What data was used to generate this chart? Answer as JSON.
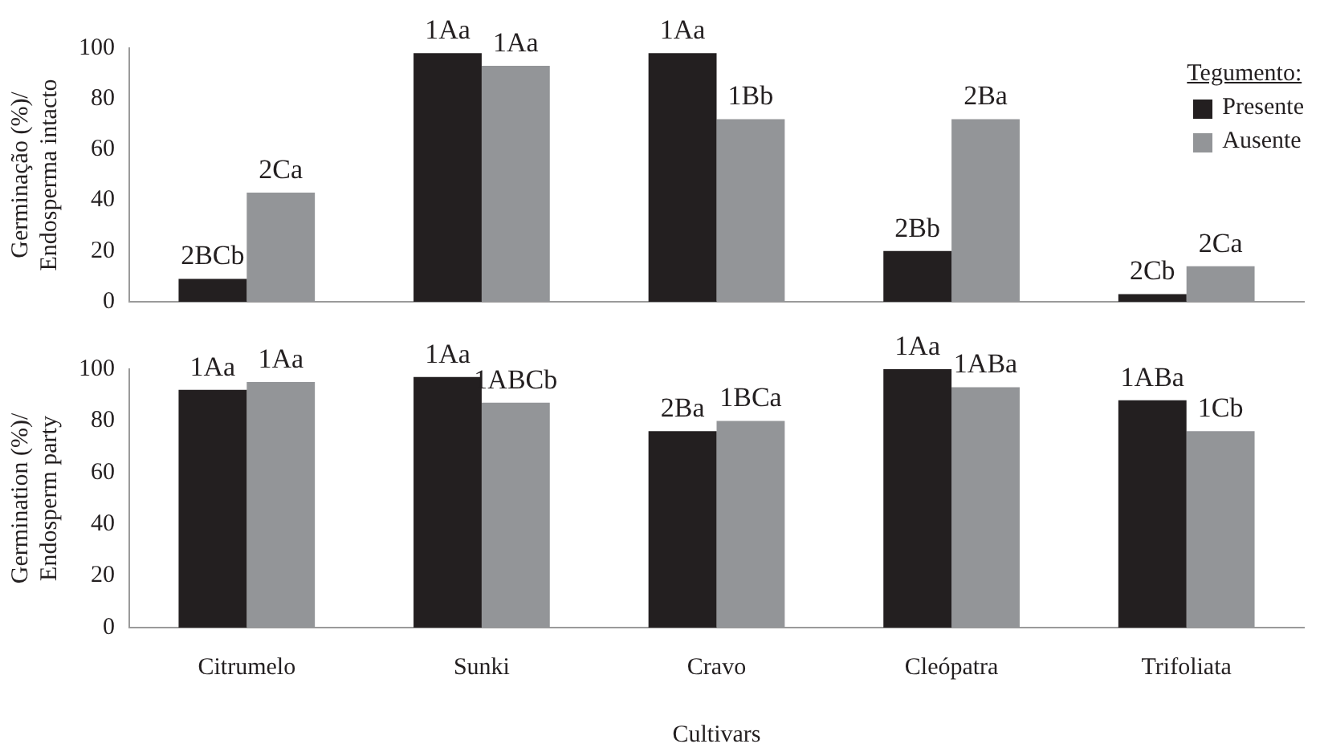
{
  "chart_data": [
    {
      "type": "bar",
      "ylabel": "Germinação (%)/\nEndosperma intacto",
      "categories": [
        "Citrumelo",
        "Sunki",
        "Cravo",
        "Cleópatra",
        "Trifoliata"
      ],
      "tick_labels": "y",
      "ylim": [
        0,
        100
      ],
      "yticks": [
        0,
        20,
        40,
        60,
        80,
        100
      ],
      "grid": false,
      "legend": "top right",
      "legend_title": "Tegumento:",
      "series": [
        {
          "name": "Presente",
          "color": "#231f20",
          "values": [
            9,
            98,
            98,
            20,
            3
          ]
        },
        {
          "name": "Ausente",
          "color": "#939598",
          "values": [
            43,
            93,
            72,
            72,
            14
          ]
        }
      ],
      "annotations": [
        {
          "text": "2BCb",
          "x": "Citrumelo",
          "y": 9
        },
        {
          "text": "1Aa",
          "x": "Sunki",
          "y": 98
        },
        {
          "text": "1Aa",
          "x": "Cravo",
          "y": 98
        },
        {
          "text": "2Bb",
          "x": "Cleópatra",
          "y": 20
        },
        {
          "text": "2Cb",
          "x": "Trifoliata",
          "y": 3
        },
        {
          "text": "2Ca",
          "x": "Citrumelo",
          "y": 43
        },
        {
          "text": "1Aa",
          "x": "Sunki",
          "y": 93
        },
        {
          "text": "1Bb",
          "x": "Cravo",
          "y": 72
        },
        {
          "text": "2Ba",
          "x": "Cleópatra",
          "y": 72
        },
        {
          "text": "2Ca",
          "x": "Trifoliata",
          "y": 14
        }
      ]
    },
    {
      "type": "bar",
      "ylabel": "Germination (%)/\nEndosperm party",
      "xlabel": "Cultivars",
      "categories": [
        "Citrumelo",
        "Sunki",
        "Cravo",
        "Cleópatra",
        "Trifoliata"
      ],
      "ylim": [
        0,
        100
      ],
      "yticks": [
        0,
        20,
        40,
        60,
        80,
        100
      ],
      "grid": false,
      "series": [
        {
          "color": "#231f20",
          "values": [
            92,
            97,
            76,
            100,
            88
          ]
        },
        {
          "color": "#939598",
          "values": [
            95,
            87,
            80,
            93,
            76
          ]
        }
      ],
      "annotations": [
        {
          "text": "1Aa",
          "x": "Citrumelo",
          "y": 92
        },
        {
          "text": "1Aa",
          "x": "Sunki",
          "y": 97
        },
        {
          "text": "2Ba",
          "x": "Cravo",
          "y": 76
        },
        {
          "text": "1Aa",
          "x": "Cleópatra",
          "y": 100
        },
        {
          "text": "1ABa",
          "x": "Trifoliata",
          "y": 88
        },
        {
          "text": "1Aa",
          "x": "Citrumelo",
          "y": 95
        },
        {
          "text": "1ABCb",
          "x": "Sunki",
          "y": 87
        },
        {
          "text": "1BCa",
          "x": "Cravo",
          "y": 80
        },
        {
          "text": "1ABa",
          "x": "Cleópatra",
          "y": 93
        },
        {
          "text": "1Cb",
          "x": "Trifoliata",
          "y": 76
        }
      ]
    }
  ]
}
